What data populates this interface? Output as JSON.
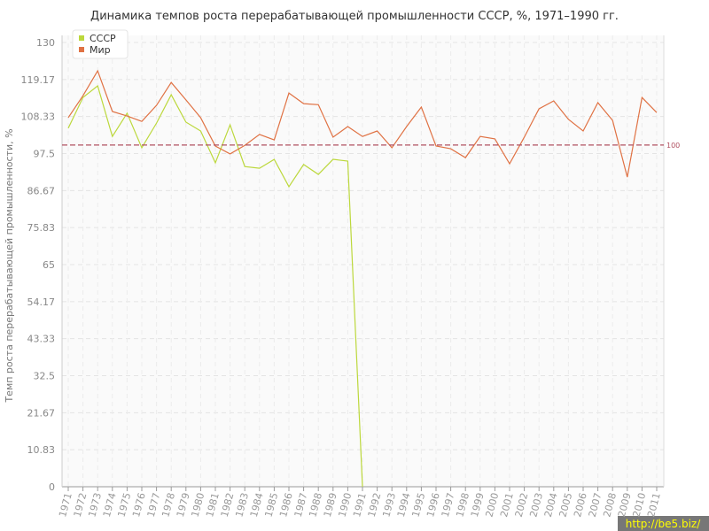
{
  "chart_data": {
    "type": "line",
    "title": "Динамика темпов роста перерабатывающей промышленности СССР, %, 1971–1990 гг.",
    "y_label": "Темп роста перерабатывающей промышленности, %",
    "categories": [
      "1971",
      "1972",
      "1973",
      "1974",
      "1975",
      "1976",
      "1977",
      "1978",
      "1979",
      "1980",
      "1981",
      "1982",
      "1983",
      "1984",
      "1985",
      "1986",
      "1987",
      "1988",
      "1989",
      "1990",
      "1991",
      "1992",
      "1993",
      "1994",
      "1995",
      "1996",
      "1997",
      "1998",
      "1999",
      "2000",
      "2001",
      "2002",
      "2003",
      "2004",
      "2005",
      "2006",
      "2007",
      "2008",
      "2009",
      "2010",
      "2011"
    ],
    "series": [
      {
        "name": "СССР",
        "color": "#bcd83c",
        "values": [
          104.9,
          113.9,
          117.3,
          102.5,
          109.3,
          99.2,
          106.4,
          114.7,
          106.7,
          104.1,
          94.8,
          105.9,
          93.7,
          93.2,
          95.8,
          87.8,
          94.3,
          91.4,
          95.8,
          95.3,
          0,
          null,
          null,
          null,
          null,
          null,
          null,
          null,
          null,
          null,
          null,
          null,
          null,
          null,
          null,
          null,
          null,
          null,
          null,
          null,
          null
        ]
      },
      {
        "name": "Мир",
        "color": "#e07244",
        "values": [
          108.0,
          114.4,
          121.7,
          109.8,
          108.5,
          106.9,
          111.6,
          118.3,
          113.2,
          108.0,
          99.7,
          97.4,
          99.9,
          103.1,
          101.5,
          115.2,
          112.1,
          111.8,
          102.3,
          105.4,
          102.5,
          104.1,
          99.2,
          105.4,
          111.1,
          99.7,
          98.9,
          96.3,
          102.5,
          101.8,
          94.5,
          102.3,
          110.6,
          112.9,
          107.5,
          104.1,
          112.4,
          107.2,
          90.6,
          113.9,
          109.5
        ]
      }
    ],
    "ylim": [
      0,
      130
    ],
    "yticks": [
      0,
      10.83,
      21.67,
      32.5,
      43.33,
      54.17,
      65,
      75.83,
      86.67,
      97.5,
      108.33,
      119.17,
      130
    ],
    "reference_line": 100,
    "reference_color": "#b05060",
    "grid": true,
    "legend": "top-left"
  },
  "watermark": "http://be5.biz/"
}
